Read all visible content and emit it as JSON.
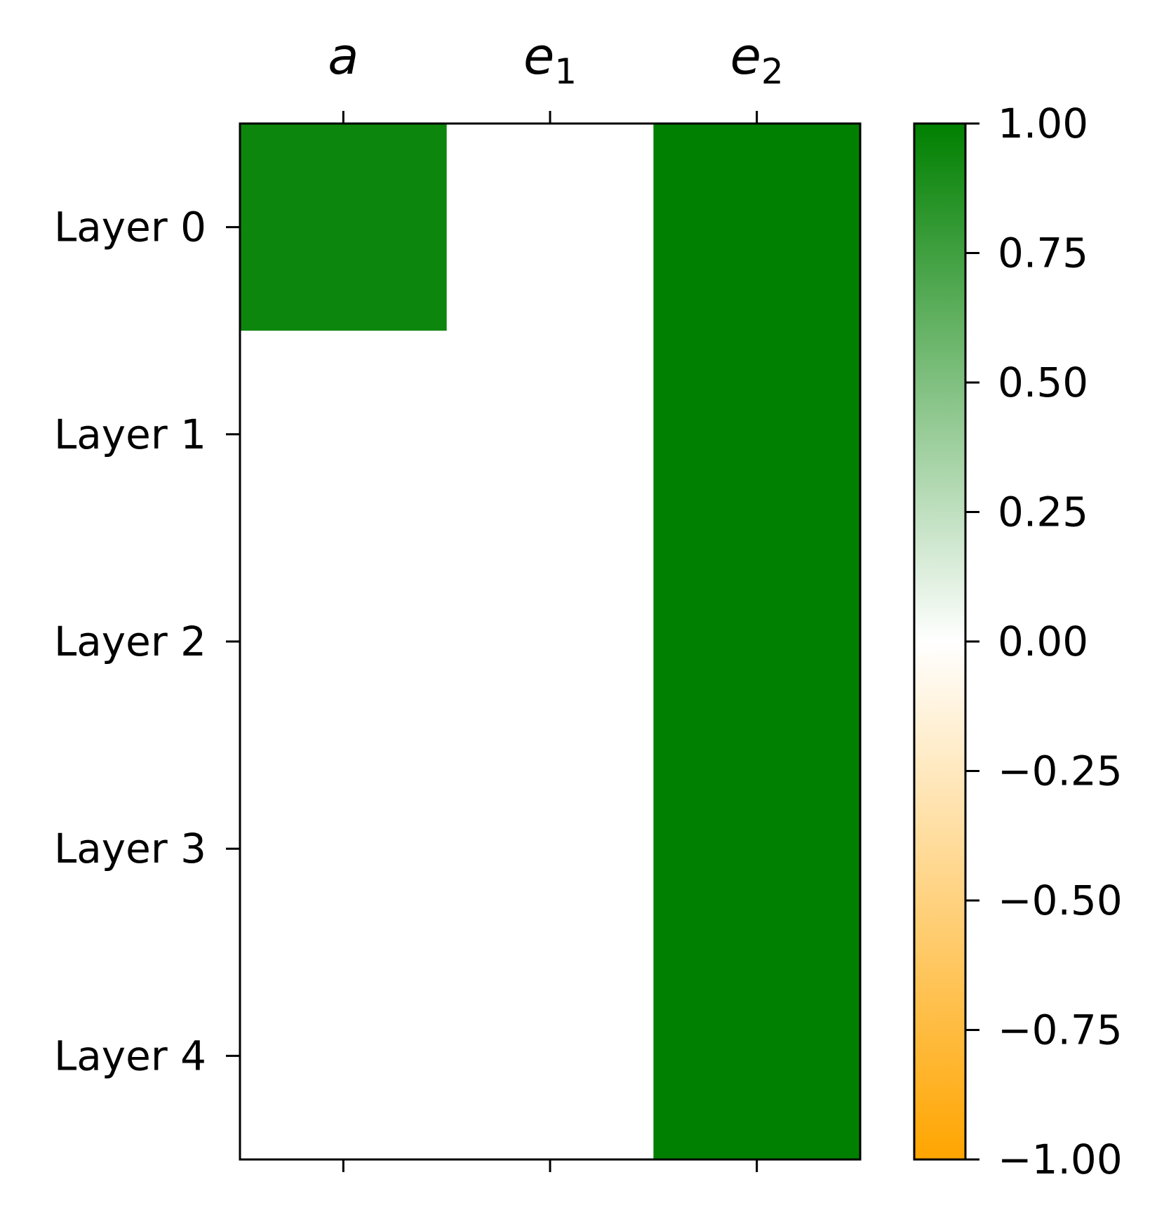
{
  "chart_data": {
    "type": "heatmap",
    "columns": [
      {
        "base": "a",
        "sub": ""
      },
      {
        "base": "e",
        "sub": "1"
      },
      {
        "base": "e",
        "sub": "2"
      }
    ],
    "rows": [
      "Layer 0",
      "Layer 1",
      "Layer 2",
      "Layer 3",
      "Layer 4"
    ],
    "values": [
      [
        0.95,
        0,
        1
      ],
      [
        0,
        0,
        1
      ],
      [
        0,
        0,
        1
      ],
      [
        0,
        0,
        1
      ],
      [
        0,
        0,
        1
      ]
    ],
    "colorbar": {
      "min": -1,
      "max": 1,
      "ticks": [
        1,
        0.75,
        0.5,
        0.25,
        0,
        -0.25,
        -0.5,
        -0.75,
        -1
      ],
      "tick_labels": [
        "1.00",
        "0.75",
        "0.50",
        "0.25",
        "0.00",
        "−0.25",
        "−0.50",
        "−0.75",
        "−1.00"
      ],
      "colors": {
        "negative": "#ffa500",
        "zero": "#ffffff",
        "positive": "#008000"
      }
    }
  }
}
